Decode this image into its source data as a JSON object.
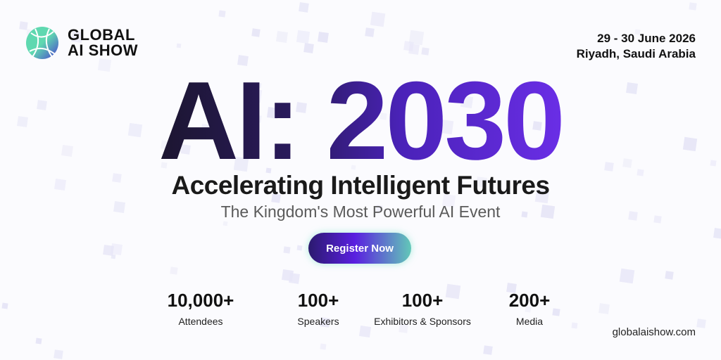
{
  "brand": {
    "name_line1": "GLOBAL",
    "name_line2": "AI SHOW"
  },
  "event": {
    "dates": "29 - 30 June 2026",
    "location": "Riyadh, Saudi Arabia"
  },
  "hero": {
    "headline": "AI: 2030",
    "subtitle": "Accelerating Intelligent Futures",
    "tagline": "The Kingdom's Most Powerful AI Event"
  },
  "cta": {
    "label": "Register Now"
  },
  "stats": [
    {
      "value": "10,000+",
      "label": "Attendees"
    },
    {
      "value": "100+",
      "label": "Speakers"
    },
    {
      "value": "100+",
      "label": "Exhibitors & Sponsors"
    },
    {
      "value": "200+",
      "label": "Media"
    }
  ],
  "website": "globalaishow.com",
  "colors": {
    "accent_purple": "#5a1fe0",
    "accent_teal": "#5fd8b0",
    "dark": "#1c1630"
  }
}
